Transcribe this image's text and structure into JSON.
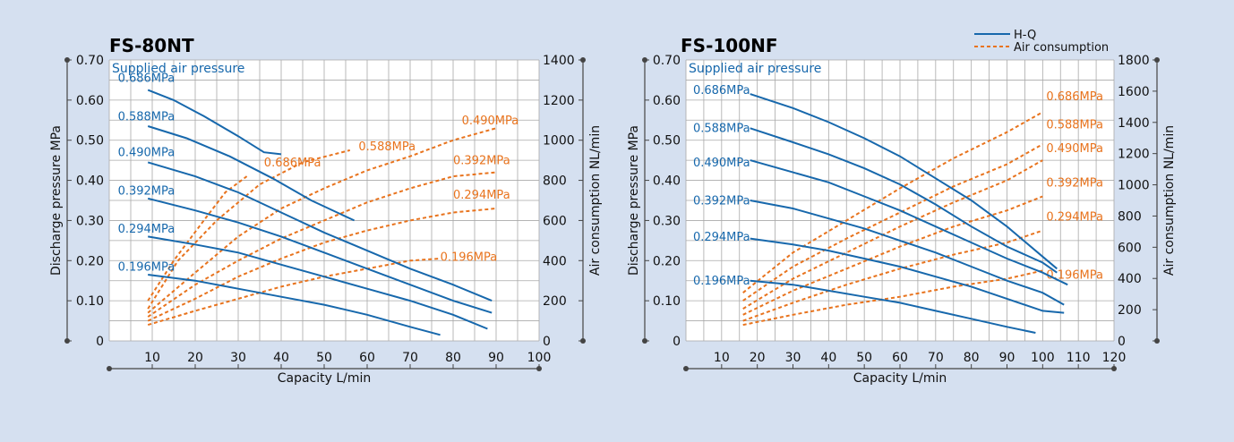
{
  "colors": {
    "background": "#d5e0f0",
    "plot_bg": "#ffffff",
    "grid": "#a9a9a9",
    "hq_line": "#1768ac",
    "air_line": "#e8731d",
    "axis": "#444444"
  },
  "legend": {
    "hq_label": "H-Q",
    "air_label": "Air consumption"
  },
  "chart_data": [
    {
      "type": "line",
      "title": "FS-80NT",
      "xlabel": "Capacity  L/min",
      "ylabel": "Discharge pressure  MPa",
      "y2label": "Air consumption  NL/min",
      "annotation": "Supplied air pressure",
      "xlim": [
        0,
        100
      ],
      "xticks": [
        10,
        20,
        30,
        40,
        50,
        60,
        70,
        80,
        90,
        100
      ],
      "ylim": [
        0,
        0.7
      ],
      "yticks": [
        "0",
        "0.10",
        "0.20",
        "0.30",
        "0.40",
        "0.50",
        "0.60",
        "0.70"
      ],
      "y2lim": [
        0,
        1400
      ],
      "y2ticks": [
        "0",
        "200",
        "400",
        "600",
        "800",
        "1000",
        "1200",
        "1400"
      ],
      "hq_series": [
        {
          "name": "0.686MPa",
          "label_pos": [
            2,
            0.645
          ],
          "points": [
            [
              9,
              0.625
            ],
            [
              15,
              0.6
            ],
            [
              22,
              0.56
            ],
            [
              30,
              0.51
            ],
            [
              36,
              0.47
            ],
            [
              40,
              0.465
            ]
          ]
        },
        {
          "name": "0.588MPa",
          "label_pos": [
            2,
            0.55
          ],
          "points": [
            [
              9,
              0.535
            ],
            [
              18,
              0.505
            ],
            [
              28,
              0.46
            ],
            [
              38,
              0.405
            ],
            [
              47,
              0.35
            ],
            [
              57,
              0.3
            ]
          ]
        },
        {
          "name": "0.490MPa",
          "label_pos": [
            2,
            0.46
          ],
          "points": [
            [
              9,
              0.445
            ],
            [
              20,
              0.41
            ],
            [
              30,
              0.37
            ],
            [
              40,
              0.32
            ],
            [
              50,
              0.27
            ],
            [
              60,
              0.225
            ],
            [
              70,
              0.18
            ],
            [
              80,
              0.14
            ],
            [
              89,
              0.1
            ]
          ]
        },
        {
          "name": "0.392MPa",
          "label_pos": [
            2,
            0.365
          ],
          "points": [
            [
              9,
              0.355
            ],
            [
              20,
              0.325
            ],
            [
              30,
              0.295
            ],
            [
              40,
              0.26
            ],
            [
              50,
              0.22
            ],
            [
              60,
              0.18
            ],
            [
              70,
              0.14
            ],
            [
              80,
              0.1
            ],
            [
              89,
              0.07
            ]
          ]
        },
        {
          "name": "0.294MPa",
          "label_pos": [
            2,
            0.27
          ],
          "points": [
            [
              9,
              0.26
            ],
            [
              20,
              0.24
            ],
            [
              30,
              0.22
            ],
            [
              40,
              0.19
            ],
            [
              50,
              0.16
            ],
            [
              60,
              0.13
            ],
            [
              70,
              0.1
            ],
            [
              80,
              0.065
            ],
            [
              88,
              0.03
            ]
          ]
        },
        {
          "name": "0.196MPa",
          "label_pos": [
            2,
            0.175
          ],
          "points": [
            [
              9,
              0.165
            ],
            [
              20,
              0.15
            ],
            [
              30,
              0.13
            ],
            [
              40,
              0.11
            ],
            [
              50,
              0.09
            ],
            [
              60,
              0.065
            ],
            [
              70,
              0.035
            ],
            [
              77,
              0.015
            ]
          ]
        }
      ],
      "air_series": [
        {
          "name": "0.686MPa",
          "label_pos": [
            36,
            0.435
          ],
          "points": [
            [
              9,
              0.1
            ],
            [
              15,
              0.2
            ],
            [
              22,
              0.3
            ],
            [
              27,
              0.37
            ],
            [
              32,
              0.41
            ]
          ]
        },
        {
          "name": "0.588MPa",
          "label_pos": [
            58,
            0.475
          ],
          "points": [
            [
              9,
              0.08
            ],
            [
              16,
              0.2
            ],
            [
              25,
              0.3
            ],
            [
              35,
              0.39
            ],
            [
              45,
              0.445
            ],
            [
              56,
              0.475
            ]
          ]
        },
        {
          "name": "0.490MPa",
          "label_pos": [
            82,
            0.54
          ],
          "points": [
            [
              9,
              0.07
            ],
            [
              20,
              0.17
            ],
            [
              30,
              0.26
            ],
            [
              40,
              0.33
            ],
            [
              50,
              0.38
            ],
            [
              60,
              0.425
            ],
            [
              70,
              0.46
            ],
            [
              80,
              0.5
            ],
            [
              90,
              0.53
            ]
          ]
        },
        {
          "name": "0.392MPa",
          "label_pos": [
            80,
            0.44
          ],
          "points": [
            [
              9,
              0.06
            ],
            [
              20,
              0.14
            ],
            [
              30,
              0.2
            ],
            [
              40,
              0.255
            ],
            [
              50,
              0.3
            ],
            [
              60,
              0.345
            ],
            [
              70,
              0.38
            ],
            [
              80,
              0.41
            ],
            [
              90,
              0.42
            ]
          ]
        },
        {
          "name": "0.294MPa",
          "label_pos": [
            80,
            0.355
          ],
          "points": [
            [
              9,
              0.05
            ],
            [
              20,
              0.105
            ],
            [
              30,
              0.16
            ],
            [
              40,
              0.205
            ],
            [
              50,
              0.245
            ],
            [
              60,
              0.275
            ],
            [
              70,
              0.3
            ],
            [
              80,
              0.32
            ],
            [
              90,
              0.33
            ]
          ]
        },
        {
          "name": "0.196MPa",
          "label_pos": [
            77,
            0.2
          ],
          "points": [
            [
              9,
              0.04
            ],
            [
              20,
              0.075
            ],
            [
              30,
              0.105
            ],
            [
              40,
              0.135
            ],
            [
              50,
              0.16
            ],
            [
              60,
              0.18
            ],
            [
              70,
              0.2
            ],
            [
              77,
              0.205
            ]
          ]
        }
      ]
    },
    {
      "type": "line",
      "title": "FS-100NF",
      "xlabel": "Capacity  L/min",
      "ylabel": "Discharge pressure  MPa",
      "y2label": "Air consumption  NL/min",
      "annotation": "Supplied air pressure",
      "xlim": [
        0,
        120
      ],
      "xticks": [
        10,
        20,
        30,
        40,
        50,
        60,
        70,
        80,
        90,
        100,
        110,
        120
      ],
      "ylim": [
        0,
        0.7
      ],
      "yticks": [
        "0",
        "0.10",
        "0.20",
        "0.30",
        "0.40",
        "0.50",
        "0.60",
        "0.70"
      ],
      "y2lim": [
        0,
        1800
      ],
      "y2ticks": [
        "0",
        "200",
        "400",
        "600",
        "800",
        "1000",
        "1200",
        "1400",
        "1600",
        "1800"
      ],
      "hq_series": [
        {
          "name": "0.686MPa",
          "label_pos": [
            2,
            0.615
          ],
          "points": [
            [
              18,
              0.615
            ],
            [
              30,
              0.58
            ],
            [
              40,
              0.545
            ],
            [
              50,
              0.505
            ],
            [
              60,
              0.46
            ],
            [
              70,
              0.405
            ],
            [
              80,
              0.35
            ],
            [
              90,
              0.285
            ],
            [
              100,
              0.21
            ],
            [
              104,
              0.18
            ]
          ]
        },
        {
          "name": "0.588MPa",
          "label_pos": [
            2,
            0.52
          ],
          "points": [
            [
              18,
              0.53
            ],
            [
              30,
              0.495
            ],
            [
              40,
              0.465
            ],
            [
              50,
              0.43
            ],
            [
              60,
              0.39
            ],
            [
              70,
              0.34
            ],
            [
              80,
              0.285
            ],
            [
              90,
              0.235
            ],
            [
              100,
              0.195
            ],
            [
              104,
              0.17
            ]
          ]
        },
        {
          "name": "0.490MPa",
          "label_pos": [
            2,
            0.435
          ],
          "points": [
            [
              18,
              0.45
            ],
            [
              30,
              0.42
            ],
            [
              40,
              0.395
            ],
            [
              50,
              0.36
            ],
            [
              60,
              0.325
            ],
            [
              70,
              0.285
            ],
            [
              80,
              0.245
            ],
            [
              90,
              0.205
            ],
            [
              100,
              0.17
            ],
            [
              107,
              0.14
            ]
          ]
        },
        {
          "name": "0.392MPa",
          "label_pos": [
            2,
            0.34
          ],
          "points": [
            [
              18,
              0.35
            ],
            [
              30,
              0.33
            ],
            [
              40,
              0.305
            ],
            [
              50,
              0.28
            ],
            [
              60,
              0.25
            ],
            [
              70,
              0.22
            ],
            [
              80,
              0.185
            ],
            [
              90,
              0.15
            ],
            [
              100,
              0.12
            ],
            [
              106,
              0.09
            ]
          ]
        },
        {
          "name": "0.294MPa",
          "label_pos": [
            2,
            0.25
          ],
          "points": [
            [
              18,
              0.255
            ],
            [
              30,
              0.24
            ],
            [
              40,
              0.225
            ],
            [
              50,
              0.205
            ],
            [
              60,
              0.185
            ],
            [
              70,
              0.16
            ],
            [
              80,
              0.135
            ],
            [
              90,
              0.105
            ],
            [
              100,
              0.075
            ],
            [
              106,
              0.07
            ]
          ]
        },
        {
          "name": "0.196MPa",
          "label_pos": [
            2,
            0.14
          ],
          "points": [
            [
              18,
              0.15
            ],
            [
              30,
              0.14
            ],
            [
              40,
              0.125
            ],
            [
              50,
              0.11
            ],
            [
              60,
              0.095
            ],
            [
              70,
              0.075
            ],
            [
              80,
              0.055
            ],
            [
              90,
              0.035
            ],
            [
              98,
              0.02
            ]
          ]
        }
      ],
      "air_series": [
        {
          "name": "0.686MPa",
          "label_pos": [
            101,
            0.6
          ],
          "points": [
            [
              16,
              0.12
            ],
            [
              30,
              0.22
            ],
            [
              45,
              0.3
            ],
            [
              60,
              0.38
            ],
            [
              75,
              0.455
            ],
            [
              90,
              0.52
            ],
            [
              100,
              0.57
            ]
          ]
        },
        {
          "name": "0.588MPa",
          "label_pos": [
            101,
            0.53
          ],
          "points": [
            [
              16,
              0.1
            ],
            [
              30,
              0.185
            ],
            [
              45,
              0.255
            ],
            [
              60,
              0.32
            ],
            [
              75,
              0.385
            ],
            [
              90,
              0.44
            ],
            [
              100,
              0.49
            ]
          ]
        },
        {
          "name": "0.490MPa",
          "label_pos": [
            101,
            0.47
          ],
          "points": [
            [
              16,
              0.08
            ],
            [
              30,
              0.155
            ],
            [
              45,
              0.22
            ],
            [
              60,
              0.285
            ],
            [
              75,
              0.345
            ],
            [
              90,
              0.4
            ],
            [
              100,
              0.45
            ]
          ]
        },
        {
          "name": "0.392MPa",
          "label_pos": [
            101,
            0.385
          ],
          "points": [
            [
              16,
              0.065
            ],
            [
              30,
              0.125
            ],
            [
              45,
              0.18
            ],
            [
              60,
              0.235
            ],
            [
              75,
              0.285
            ],
            [
              90,
              0.325
            ],
            [
              100,
              0.36
            ]
          ]
        },
        {
          "name": "0.294MPa",
          "label_pos": [
            101,
            0.3
          ],
          "points": [
            [
              16,
              0.05
            ],
            [
              30,
              0.095
            ],
            [
              45,
              0.14
            ],
            [
              60,
              0.18
            ],
            [
              75,
              0.215
            ],
            [
              90,
              0.245
            ],
            [
              100,
              0.275
            ]
          ]
        },
        {
          "name": "0.196MPa",
          "label_pos": [
            101,
            0.155
          ],
          "points": [
            [
              16,
              0.04
            ],
            [
              30,
              0.065
            ],
            [
              45,
              0.09
            ],
            [
              60,
              0.11
            ],
            [
              75,
              0.135
            ],
            [
              90,
              0.155
            ],
            [
              100,
              0.175
            ]
          ]
        }
      ]
    }
  ]
}
